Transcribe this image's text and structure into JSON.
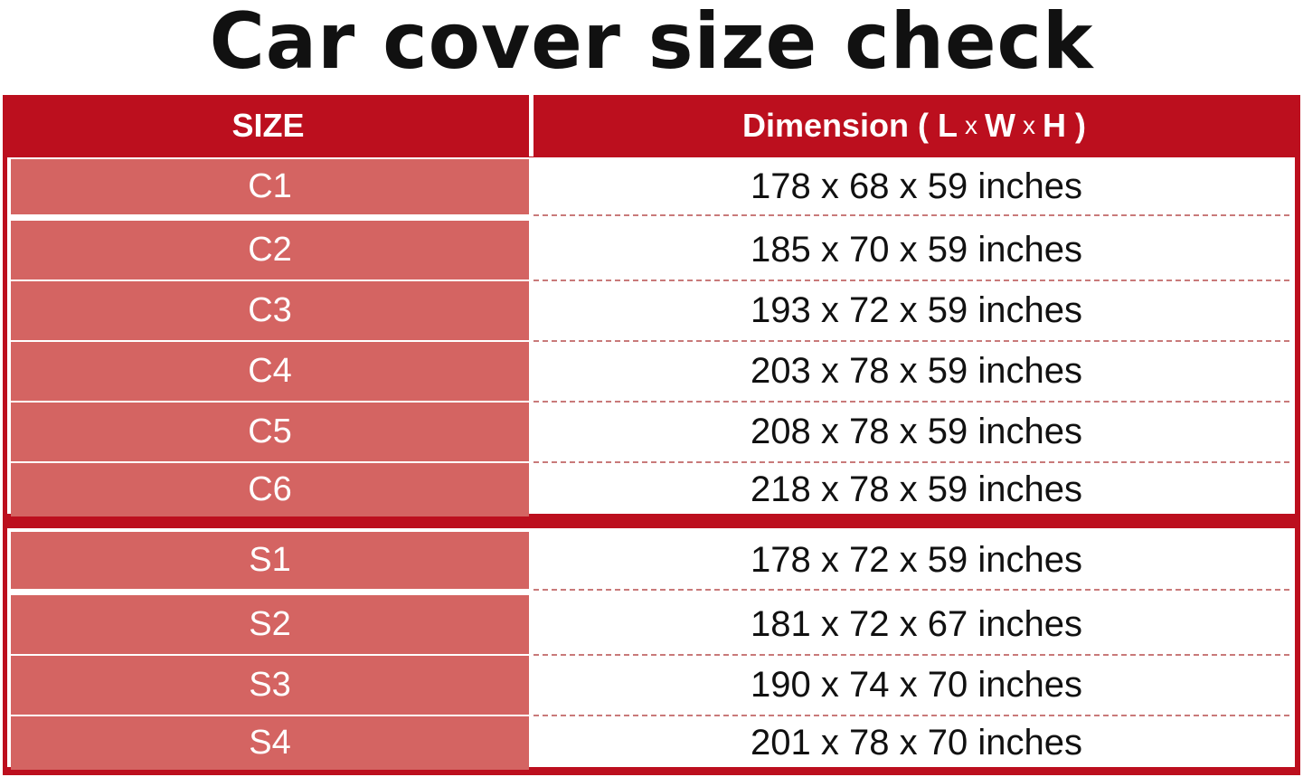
{
  "title": "Car cover size check",
  "colors": {
    "header_red": "#bc0f1e",
    "size_cell": "#d46462",
    "divider": "#c97a7a"
  },
  "table": {
    "headers": {
      "size": "SIZE",
      "dimension": "Dimension",
      "dim_open": "( L",
      "x1": "x",
      "w": "W",
      "x2": "x",
      "h_close": "H )"
    },
    "groups": [
      [
        {
          "size": "C1",
          "dimension": "178 x 68 x 59 inches"
        },
        {
          "size": "C2",
          "dimension": "185 x 70 x 59 inches"
        },
        {
          "size": "C3",
          "dimension": "193 x 72 x 59 inches"
        },
        {
          "size": "C4",
          "dimension": "203 x 78 x 59 inches"
        },
        {
          "size": "C5",
          "dimension": "208 x 78 x 59 inches"
        },
        {
          "size": "C6",
          "dimension": "218 x 78 x 59 inches"
        }
      ],
      [
        {
          "size": "S1",
          "dimension": "178 x 72 x 59 inches"
        },
        {
          "size": "S2",
          "dimension": "181 x 72 x 67 inches"
        },
        {
          "size": "S3",
          "dimension": "190 x 74 x 70 inches"
        },
        {
          "size": "S4",
          "dimension": "201 x 78 x 70 inches"
        }
      ]
    ]
  }
}
